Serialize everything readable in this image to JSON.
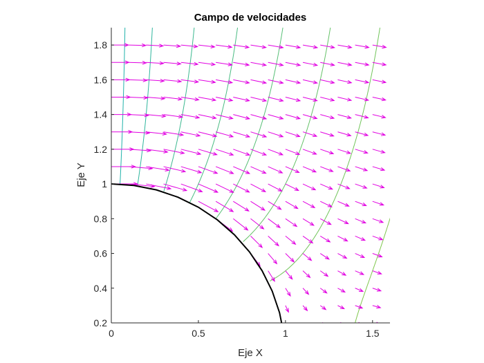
{
  "chart_data": {
    "type": "quiver-contour",
    "title": "Campo de velocidades",
    "xlabel": "Eje X",
    "ylabel": "Eje Y",
    "xlim": [
      0,
      1.6
    ],
    "ylim": [
      0.2,
      1.9
    ],
    "xticks": [
      "0",
      "0.5",
      "1",
      "1.5"
    ],
    "xtick_values": [
      0,
      0.5,
      1,
      1.5
    ],
    "yticks": [
      "0.2",
      "0.4",
      "0.6",
      "0.8",
      "1",
      "1.2",
      "1.4",
      "1.6",
      "1.8"
    ],
    "ytick_values": [
      0.2,
      0.4,
      0.6,
      0.8,
      1,
      1.2,
      1.4,
      1.6,
      1.8
    ],
    "grid": false,
    "cylinder_radius": 1,
    "flow": "potential flow past a unit cylinder, U = 1",
    "quiver_grid": {
      "x_values": [
        0,
        0.1,
        0.2,
        0.3,
        0.4,
        0.5,
        0.6,
        0.7,
        0.8,
        0.9,
        1.0,
        1.1,
        1.2,
        1.3,
        1.4,
        1.5,
        1.6
      ],
      "y_values": [
        0.2,
        0.3,
        0.4,
        0.5,
        0.6,
        0.7,
        0.8,
        0.9,
        1.0,
        1.1,
        1.2,
        1.3,
        1.4,
        1.5,
        1.6,
        1.7,
        1.8
      ]
    },
    "potential_levels": [
      0.1,
      0.3,
      0.6,
      0.9,
      1.2,
      1.5,
      1.8,
      2.1,
      2.4,
      2.7
    ],
    "colors": {
      "arrows": "#e100e1",
      "boundary": "#000000",
      "contours_low": "#20b2aa",
      "contours_high": "#9acd32",
      "axes": "#262626"
    }
  }
}
